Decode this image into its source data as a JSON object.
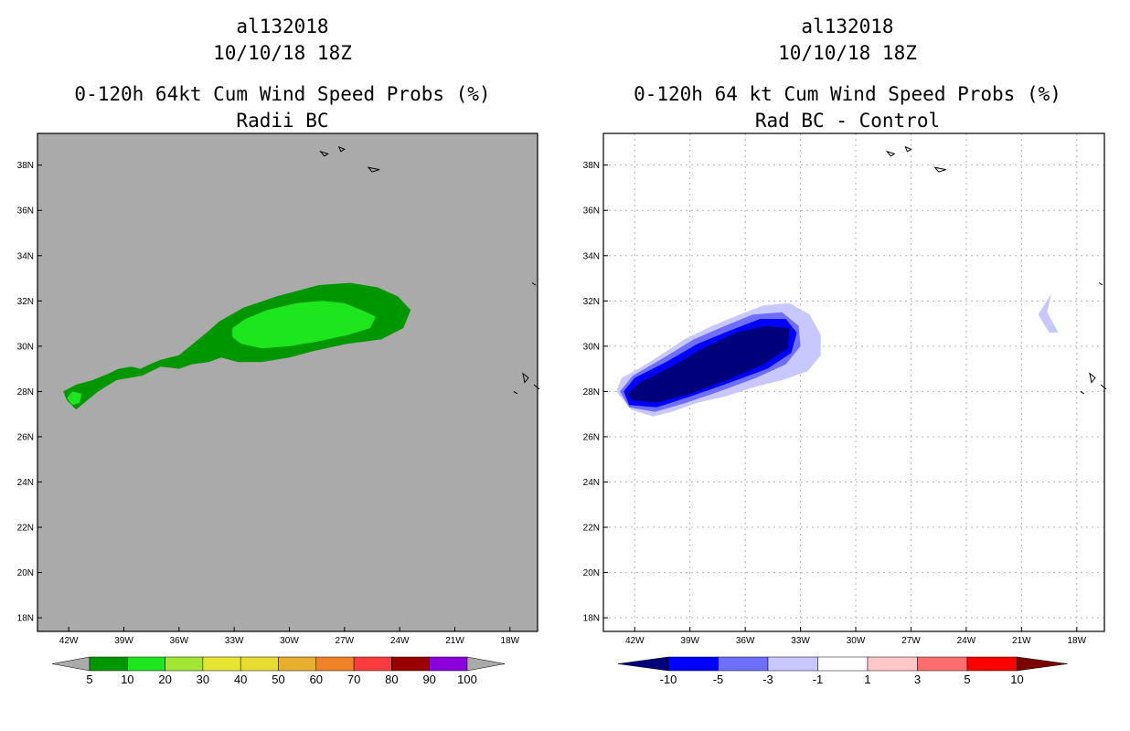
{
  "left": {
    "title": {
      "storm": "al132018",
      "date": "10/10/18 18Z",
      "product": "0-120h 64kt Cum Wind Speed Probs (%)",
      "subtitle": "Radii BC"
    }
  },
  "right": {
    "title": {
      "storm": "al132018",
      "date": "10/10/18 18Z",
      "product": "0-120h 64 kt Cum Wind Speed Probs (%)",
      "subtitle": "Rad BC - Control"
    }
  },
  "chart_data": [
    {
      "type": "heatmap",
      "title": "0-120h 64kt Cum Wind Speed Probs (%)",
      "subtitle": "Radii BC",
      "xlim": [
        -43.7,
        -16.5
      ],
      "ylim": [
        17.4,
        39.4
      ],
      "x_ticks": [
        -42,
        -39,
        -36,
        -33,
        -30,
        -27,
        -24,
        -21,
        -18
      ],
      "x_tick_labels": [
        "42W",
        "39W",
        "36W",
        "33W",
        "30W",
        "27W",
        "24W",
        "21W",
        "18W"
      ],
      "y_ticks": [
        18,
        20,
        22,
        24,
        26,
        28,
        30,
        32,
        34,
        36,
        38
      ],
      "y_tick_labels": [
        "18N",
        "20N",
        "22N",
        "24N",
        "26N",
        "28N",
        "30N",
        "32N",
        "34N",
        "36N",
        "38N"
      ],
      "grid": false,
      "background_color": "#aaaaaa",
      "colorbar": {
        "labels": [
          "5",
          "10",
          "20",
          "30",
          "40",
          "50",
          "60",
          "70",
          "80",
          "90",
          "100"
        ],
        "colors": [
          "#009600",
          "#1ee61e",
          "#a0e632",
          "#e6e632",
          "#e6dc32",
          "#e6af2d",
          "#f08228",
          "#fa3c3c",
          "#9b0000",
          "#8c00dc"
        ],
        "end_color": "#aaaaaa"
      },
      "regions": [
        {
          "level": "5-10",
          "color": "#009600",
          "lon_lat": [
            [
              -42.1,
              27.6
            ],
            [
              -42.3,
              28.0
            ],
            [
              -41.6,
              28.3
            ],
            [
              -40.7,
              28.5
            ],
            [
              -39.8,
              28.8
            ],
            [
              -39.3,
              29.0
            ],
            [
              -38.6,
              29.1
            ],
            [
              -38.1,
              29.0
            ],
            [
              -37.6,
              29.2
            ],
            [
              -37.0,
              29.4
            ],
            [
              -36.0,
              29.6
            ],
            [
              -35.4,
              30.0
            ],
            [
              -34.5,
              30.6
            ],
            [
              -33.8,
              31.1
            ],
            [
              -32.5,
              31.7
            ],
            [
              -30.7,
              32.2
            ],
            [
              -28.4,
              32.7
            ],
            [
              -26.7,
              32.8
            ],
            [
              -25.2,
              32.6
            ],
            [
              -24.1,
              32.2
            ],
            [
              -23.4,
              31.6
            ],
            [
              -23.8,
              30.8
            ],
            [
              -25.0,
              30.3
            ],
            [
              -26.9,
              30.1
            ],
            [
              -28.6,
              29.8
            ],
            [
              -30.0,
              29.5
            ],
            [
              -31.5,
              29.3
            ],
            [
              -32.8,
              29.3
            ],
            [
              -33.7,
              29.5
            ],
            [
              -34.4,
              29.3
            ],
            [
              -35.3,
              29.2
            ],
            [
              -36.0,
              29.0
            ],
            [
              -37.0,
              29.1
            ],
            [
              -38.0,
              28.7
            ],
            [
              -39.4,
              28.5
            ],
            [
              -40.4,
              28.0
            ],
            [
              -41.0,
              27.6
            ],
            [
              -41.6,
              27.2
            ]
          ]
        },
        {
          "level": "10-20",
          "color": "#1ee61e",
          "lon_lat": [
            [
              -42.1,
              27.7
            ],
            [
              -41.8,
              28.0
            ],
            [
              -41.3,
              27.9
            ],
            [
              -41.4,
              27.5
            ],
            [
              -41.8,
              27.4
            ]
          ]
        },
        {
          "level": "10-20",
          "color": "#1ee61e",
          "lon_lat": [
            [
              -33.1,
              30.8
            ],
            [
              -32.4,
              31.2
            ],
            [
              -31.2,
              31.6
            ],
            [
              -29.6,
              31.9
            ],
            [
              -28.2,
              32.0
            ],
            [
              -27.0,
              31.9
            ],
            [
              -25.8,
              31.5
            ],
            [
              -25.3,
              31.3
            ],
            [
              -25.6,
              30.8
            ],
            [
              -26.8,
              30.5
            ],
            [
              -28.5,
              30.2
            ],
            [
              -30.0,
              30.0
            ],
            [
              -31.5,
              29.9
            ],
            [
              -32.6,
              30.1
            ],
            [
              -33.1,
              30.4
            ]
          ]
        }
      ],
      "coastlines": [
        {
          "lon_lat": [
            [
              -28.3,
              38.6
            ],
            [
              -27.9,
              38.5
            ],
            [
              -28.1,
              38.4
            ]
          ]
        },
        {
          "lon_lat": [
            [
              -27.3,
              38.8
            ],
            [
              -27.0,
              38.7
            ],
            [
              -27.2,
              38.6
            ]
          ]
        },
        {
          "lon_lat": [
            [
              -25.7,
              37.9
            ],
            [
              -25.1,
              37.8
            ],
            [
              -25.5,
              37.7
            ]
          ]
        },
        {
          "lon_lat": [
            [
              -17.3,
              28.8
            ],
            [
              -17.0,
              28.6
            ],
            [
              -17.2,
              28.4
            ]
          ]
        },
        {
          "lon_lat": [
            [
              -17.8,
              28.0
            ],
            [
              -17.6,
              27.9
            ]
          ]
        },
        {
          "lon_lat": [
            [
              -16.8,
              32.8
            ],
            [
              -16.6,
              32.7
            ]
          ]
        },
        {
          "lon_lat": [
            [
              -16.7,
              28.3
            ],
            [
              -16.4,
              28.1
            ]
          ]
        }
      ]
    },
    {
      "type": "heatmap",
      "title": "0-120h 64 kt Cum Wind Speed Probs (%)",
      "subtitle": "Rad BC - Control",
      "xlim": [
        -43.7,
        -16.5
      ],
      "ylim": [
        17.4,
        39.4
      ],
      "x_ticks": [
        -42,
        -39,
        -36,
        -33,
        -30,
        -27,
        -24,
        -21,
        -18
      ],
      "x_tick_labels": [
        "42W",
        "39W",
        "36W",
        "33W",
        "30W",
        "27W",
        "24W",
        "21W",
        "18W"
      ],
      "y_ticks": [
        18,
        20,
        22,
        24,
        26,
        28,
        30,
        32,
        34,
        36,
        38
      ],
      "y_tick_labels": [
        "18N",
        "20N",
        "22N",
        "24N",
        "26N",
        "28N",
        "30N",
        "32N",
        "34N",
        "36N",
        "38N"
      ],
      "grid": true,
      "background_color": "#ffffff",
      "colorbar": {
        "labels": [
          "-10",
          "-5",
          "-3",
          "-1",
          "1",
          "3",
          "5",
          "10"
        ],
        "colors": [
          "#0000ff",
          "#6e6eff",
          "#c8c8ff",
          "#ffffff",
          "#ffc8c8",
          "#ff6e6e",
          "#ff0000"
        ],
        "low_end_color": "#00007d",
        "high_end_color": "#7d0000"
      },
      "regions": [
        {
          "level": "-3 to -1",
          "color": "#c8c8ff",
          "lon_lat": [
            [
              -43.0,
              28.0
            ],
            [
              -42.7,
              28.6
            ],
            [
              -41.8,
              29.0
            ],
            [
              -40.6,
              29.6
            ],
            [
              -39.3,
              30.3
            ],
            [
              -37.8,
              30.9
            ],
            [
              -36.3,
              31.4
            ],
            [
              -35.0,
              31.8
            ],
            [
              -33.6,
              31.9
            ],
            [
              -32.5,
              31.4
            ],
            [
              -31.9,
              30.5
            ],
            [
              -31.9,
              29.6
            ],
            [
              -32.6,
              28.9
            ],
            [
              -34.0,
              28.5
            ],
            [
              -35.5,
              28.2
            ],
            [
              -37.0,
              27.8
            ],
            [
              -38.6,
              27.5
            ],
            [
              -40.0,
              27.1
            ],
            [
              -41.0,
              26.9
            ],
            [
              -42.2,
              27.2
            ]
          ]
        },
        {
          "level": "-3 to -1",
          "color": "#c8c8ff",
          "lon_lat": [
            [
              -20.1,
              31.4
            ],
            [
              -19.4,
              32.3
            ],
            [
              -19.6,
              31.5
            ],
            [
              -19.0,
              30.6
            ],
            [
              -19.5,
              30.6
            ]
          ]
        },
        {
          "level": "-5 to -3",
          "color": "#6e6eff",
          "lon_lat": [
            [
              -42.8,
              28.0
            ],
            [
              -42.1,
              28.7
            ],
            [
              -40.4,
              29.5
            ],
            [
              -38.8,
              30.3
            ],
            [
              -37.1,
              30.9
            ],
            [
              -35.6,
              31.4
            ],
            [
              -34.0,
              31.5
            ],
            [
              -33.1,
              30.9
            ],
            [
              -33.0,
              30.0
            ],
            [
              -33.8,
              29.2
            ],
            [
              -35.4,
              28.6
            ],
            [
              -37.4,
              28.0
            ],
            [
              -39.2,
              27.5
            ],
            [
              -40.9,
              27.1
            ],
            [
              -42.3,
              27.3
            ]
          ]
        },
        {
          "level": "-10 to -5",
          "color": "#0000ff",
          "lon_lat": [
            [
              -42.6,
              28.0
            ],
            [
              -42.0,
              28.6
            ],
            [
              -40.3,
              29.3
            ],
            [
              -38.6,
              30.1
            ],
            [
              -36.8,
              30.7
            ],
            [
              -35.2,
              31.2
            ],
            [
              -33.8,
              31.2
            ],
            [
              -33.2,
              30.6
            ],
            [
              -33.5,
              29.7
            ],
            [
              -34.8,
              29.0
            ],
            [
              -36.8,
              28.4
            ],
            [
              -38.9,
              27.8
            ],
            [
              -40.8,
              27.3
            ],
            [
              -42.3,
              27.4
            ]
          ]
        },
        {
          "level": "< -10",
          "color": "#00007d",
          "lon_lat": [
            [
              -42.4,
              27.9
            ],
            [
              -41.7,
              28.4
            ],
            [
              -40.0,
              29.1
            ],
            [
              -38.3,
              29.9
            ],
            [
              -36.5,
              30.6
            ],
            [
              -34.9,
              30.9
            ],
            [
              -33.6,
              30.8
            ],
            [
              -33.7,
              29.9
            ],
            [
              -35.0,
              29.2
            ],
            [
              -37.0,
              28.5
            ],
            [
              -39.0,
              27.9
            ],
            [
              -40.8,
              27.5
            ],
            [
              -42.1,
              27.6
            ]
          ]
        }
      ],
      "coastlines": [
        {
          "lon_lat": [
            [
              -28.3,
              38.6
            ],
            [
              -27.9,
              38.5
            ],
            [
              -28.1,
              38.4
            ]
          ]
        },
        {
          "lon_lat": [
            [
              -27.3,
              38.8
            ],
            [
              -27.0,
              38.7
            ],
            [
              -27.2,
              38.6
            ]
          ]
        },
        {
          "lon_lat": [
            [
              -25.7,
              37.9
            ],
            [
              -25.1,
              37.8
            ],
            [
              -25.5,
              37.7
            ]
          ]
        },
        {
          "lon_lat": [
            [
              -17.3,
              28.8
            ],
            [
              -17.0,
              28.6
            ],
            [
              -17.2,
              28.4
            ]
          ]
        },
        {
          "lon_lat": [
            [
              -17.8,
              28.0
            ],
            [
              -17.6,
              27.9
            ]
          ]
        },
        {
          "lon_lat": [
            [
              -16.8,
              32.8
            ],
            [
              -16.6,
              32.7
            ]
          ]
        },
        {
          "lon_lat": [
            [
              -16.7,
              28.3
            ],
            [
              -16.4,
              28.1
            ]
          ]
        }
      ]
    }
  ]
}
